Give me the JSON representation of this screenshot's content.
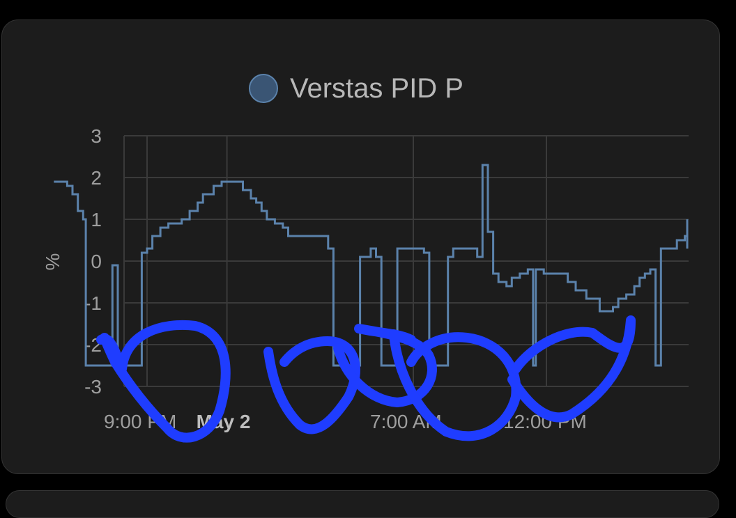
{
  "chart_data": {
    "type": "line",
    "title": "",
    "ylabel": "%",
    "xlabel": "",
    "ylim": [
      -3,
      3
    ],
    "yticks": [
      3,
      2,
      1,
      0,
      -1,
      -2,
      -3
    ],
    "x_hour_range": [
      17.5,
      43.1
    ],
    "xticks": [
      {
        "label": "9:00 PM",
        "hour": 21,
        "bold": false
      },
      {
        "label": "May 2",
        "hour": 24,
        "bold": true
      },
      {
        "label": "7:00 AM",
        "hour": 31,
        "bold": false
      },
      {
        "label": "12:00 PM",
        "hour": 36,
        "bold": false
      }
    ],
    "legend": {
      "position": "top-center"
    },
    "grid": true,
    "colors": {
      "series": "#5b82ab",
      "legend_fill": "#3a5574",
      "grid": "#3a3a3a"
    },
    "series": [
      {
        "name": "Verstas PID P",
        "step": true,
        "points": [
          [
            17.5,
            1.9
          ],
          [
            18.0,
            1.8
          ],
          [
            18.2,
            1.6
          ],
          [
            18.4,
            1.2
          ],
          [
            18.6,
            1.0
          ],
          [
            18.7,
            -2.5
          ],
          [
            19.1,
            -2.5
          ],
          [
            19.2,
            -2.5
          ],
          [
            19.7,
            -0.1
          ],
          [
            19.9,
            -2.5
          ],
          [
            20.4,
            -2.5
          ],
          [
            20.8,
            0.2
          ],
          [
            21.0,
            0.3
          ],
          [
            21.2,
            0.6
          ],
          [
            21.5,
            0.8
          ],
          [
            21.8,
            0.9
          ],
          [
            22.3,
            1.0
          ],
          [
            22.6,
            1.2
          ],
          [
            22.9,
            1.4
          ],
          [
            23.1,
            1.6
          ],
          [
            23.5,
            1.8
          ],
          [
            23.8,
            1.9
          ],
          [
            24.2,
            1.9
          ],
          [
            24.6,
            1.7
          ],
          [
            24.9,
            1.5
          ],
          [
            25.1,
            1.4
          ],
          [
            25.3,
            1.2
          ],
          [
            25.5,
            1.0
          ],
          [
            25.8,
            0.9
          ],
          [
            26.1,
            0.8
          ],
          [
            26.3,
            0.6
          ],
          [
            27.5,
            0.6
          ],
          [
            27.8,
            0.3
          ],
          [
            28.0,
            -2.5
          ],
          [
            28.6,
            -2.5
          ],
          [
            29.0,
            0.1
          ],
          [
            29.4,
            0.3
          ],
          [
            29.6,
            0.1
          ],
          [
            29.8,
            -2.5
          ],
          [
            30.3,
            -2.5
          ],
          [
            30.4,
            0.3
          ],
          [
            31.2,
            0.3
          ],
          [
            31.4,
            0.2
          ],
          [
            31.6,
            -2.5
          ],
          [
            32.2,
            -2.5
          ],
          [
            32.3,
            0.1
          ],
          [
            32.5,
            0.3
          ],
          [
            33.2,
            0.3
          ],
          [
            33.4,
            0.1
          ],
          [
            33.6,
            2.3
          ],
          [
            33.8,
            0.7
          ],
          [
            34.0,
            -0.3
          ],
          [
            34.2,
            -0.5
          ],
          [
            34.5,
            -0.6
          ],
          [
            34.7,
            -0.4
          ],
          [
            35.0,
            -0.3
          ],
          [
            35.3,
            -0.2
          ],
          [
            35.5,
            -2.5
          ],
          [
            35.6,
            -0.2
          ],
          [
            35.9,
            -0.3
          ],
          [
            36.6,
            -0.3
          ],
          [
            36.8,
            -0.5
          ],
          [
            37.1,
            -0.7
          ],
          [
            37.5,
            -0.9
          ],
          [
            38.0,
            -1.2
          ],
          [
            38.5,
            -1.1
          ],
          [
            38.7,
            -0.9
          ],
          [
            39.0,
            -0.8
          ],
          [
            39.3,
            -0.6
          ],
          [
            39.5,
            -0.4
          ],
          [
            39.7,
            -0.3
          ],
          [
            39.9,
            -0.2
          ],
          [
            40.1,
            -2.5
          ],
          [
            40.3,
            0.3
          ],
          [
            40.9,
            0.5
          ],
          [
            41.2,
            0.6
          ],
          [
            41.8,
            0.6
          ],
          [
            42.0,
            0.3
          ],
          [
            43.0,
            0.3
          ],
          [
            43.1,
            0.4
          ],
          [
            43.3,
            0.5
          ],
          [
            43.5,
            0.6
          ],
          [
            43.7,
            0.8
          ],
          [
            43.9,
            1.0
          ],
          [
            44.1,
            0.6
          ],
          [
            44.3,
            0.5
          ]
        ]
      }
    ]
  },
  "annotations": {
    "scribble_color": "#1f3dff"
  }
}
